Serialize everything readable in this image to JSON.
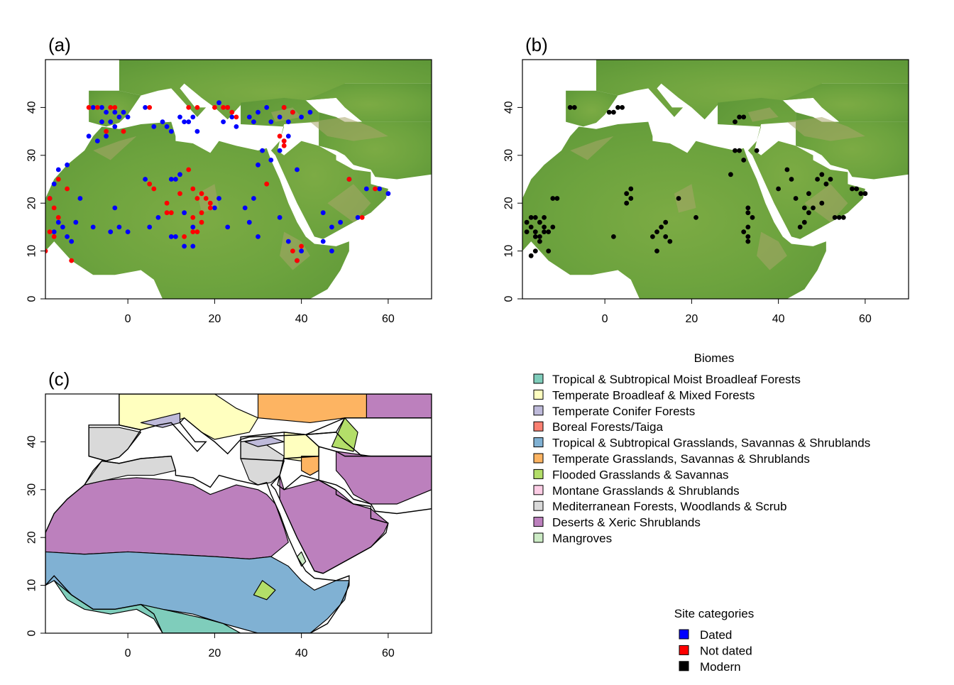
{
  "panels": {
    "a": {
      "label": "(a)"
    },
    "b": {
      "label": "(b)"
    },
    "c": {
      "label": "(c)"
    }
  },
  "axes": {
    "x_ticks": [
      "0",
      "20",
      "40",
      "60"
    ],
    "y_ticks": [
      "0",
      "10",
      "20",
      "30",
      "40"
    ],
    "xlim": [
      -19,
      70
    ],
    "ylim": [
      0,
      50
    ]
  },
  "biome_legend": {
    "title": "Biomes",
    "items": [
      {
        "label": "Tropical & Subtropical Moist Broadleaf Forests",
        "color": "#7fcdbb"
      },
      {
        "label": "Temperate Broadleaf & Mixed Forests",
        "color": "#ffffbf"
      },
      {
        "label": "Temperate Conifer Forests",
        "color": "#bebada"
      },
      {
        "label": "Boreal Forests/Taiga",
        "color": "#fb8072"
      },
      {
        "label": "Tropical & Subtropical Grasslands, Savannas & Shrublands",
        "color": "#80b1d3"
      },
      {
        "label": "Temperate Grasslands, Savannas & Shrublands",
        "color": "#fdb462"
      },
      {
        "label": "Flooded Grasslands & Savannas",
        "color": "#b3de69"
      },
      {
        "label": "Montane Grasslands & Shrublands",
        "color": "#fccde5"
      },
      {
        "label": "Mediterranean Forests, Woodlands & Scrub",
        "color": "#d9d9d9"
      },
      {
        "label": "Deserts & Xeric Shrublands",
        "color": "#bc80bd"
      },
      {
        "label": "Mangroves",
        "color": "#ccebc5"
      }
    ]
  },
  "site_legend": {
    "title": "Site categories",
    "items": [
      {
        "label": "Dated",
        "color": "#0000ff"
      },
      {
        "label": "Not dated",
        "color": "#ff0000"
      },
      {
        "label": "Modern",
        "color": "#000000"
      }
    ]
  },
  "sites": {
    "dated": [
      [
        -8,
        40
      ],
      [
        -6,
        40
      ],
      [
        -5,
        39
      ],
      [
        -3,
        39
      ],
      [
        -2,
        38
      ],
      [
        -1,
        39
      ],
      [
        0,
        38
      ],
      [
        -4,
        37
      ],
      [
        -6,
        37
      ],
      [
        -3,
        36
      ],
      [
        -5,
        34
      ],
      [
        -7,
        33
      ],
      [
        -9,
        34
      ],
      [
        -14,
        28
      ],
      [
        -16,
        27
      ],
      [
        -17,
        24
      ],
      [
        -18,
        21
      ],
      [
        -16,
        16
      ],
      [
        -15,
        15
      ],
      [
        -17,
        14
      ],
      [
        -14,
        13
      ],
      [
        -12,
        16
      ],
      [
        -11,
        21
      ],
      [
        -13,
        12
      ],
      [
        4,
        40
      ],
      [
        8,
        37
      ],
      [
        9,
        36
      ],
      [
        12,
        38
      ],
      [
        13,
        37
      ],
      [
        15,
        38
      ],
      [
        16,
        35
      ],
      [
        14,
        37
      ],
      [
        10,
        35
      ],
      [
        6,
        36
      ],
      [
        21,
        41
      ],
      [
        23,
        40
      ],
      [
        24,
        38
      ],
      [
        22,
        37
      ],
      [
        25,
        36
      ],
      [
        28,
        38
      ],
      [
        29,
        37
      ],
      [
        30,
        39
      ],
      [
        32,
        40
      ],
      [
        33,
        37
      ],
      [
        35,
        38
      ],
      [
        36,
        40
      ],
      [
        37,
        37
      ],
      [
        38,
        39
      ],
      [
        40,
        38
      ],
      [
        42,
        39
      ],
      [
        31,
        31
      ],
      [
        30,
        28
      ],
      [
        33,
        29
      ],
      [
        35,
        31
      ],
      [
        36,
        33
      ],
      [
        37,
        34
      ],
      [
        39,
        27
      ],
      [
        10,
        25
      ],
      [
        11,
        25
      ],
      [
        12,
        26
      ],
      [
        10,
        13
      ],
      [
        11,
        13
      ],
      [
        13,
        11
      ],
      [
        15,
        11
      ],
      [
        13,
        18
      ],
      [
        15,
        15
      ],
      [
        21,
        21
      ],
      [
        20,
        19
      ],
      [
        27,
        19
      ],
      [
        28,
        16
      ],
      [
        29,
        21
      ],
      [
        23,
        15
      ],
      [
        30,
        13
      ],
      [
        35,
        17
      ],
      [
        37,
        12
      ],
      [
        39,
        8
      ],
      [
        40,
        10
      ],
      [
        45,
        18
      ],
      [
        47,
        15
      ],
      [
        49,
        16
      ],
      [
        45,
        12
      ],
      [
        47,
        10
      ],
      [
        51,
        25
      ],
      [
        55,
        23
      ],
      [
        58,
        23
      ],
      [
        60,
        22
      ],
      [
        53,
        17
      ],
      [
        5,
        15
      ],
      [
        7,
        17
      ],
      [
        0,
        14
      ],
      [
        -2,
        15
      ],
      [
        -8,
        15
      ],
      [
        -4,
        14
      ],
      [
        4,
        25
      ],
      [
        -3,
        19
      ]
    ],
    "not_dated": [
      [
        -9,
        40
      ],
      [
        -7,
        40
      ],
      [
        -4,
        40
      ],
      [
        -3,
        40
      ],
      [
        -1,
        35
      ],
      [
        -5,
        35
      ],
      [
        5,
        40
      ],
      [
        14,
        40
      ],
      [
        16,
        40
      ],
      [
        20,
        40
      ],
      [
        22,
        40
      ],
      [
        23,
        40
      ],
      [
        24,
        39
      ],
      [
        25,
        38
      ],
      [
        36,
        40
      ],
      [
        38,
        39
      ],
      [
        36,
        33
      ],
      [
        35,
        34
      ],
      [
        36,
        32
      ],
      [
        -18,
        21
      ],
      [
        -17,
        19
      ],
      [
        -16,
        17
      ],
      [
        -18,
        14
      ],
      [
        -19,
        10
      ],
      [
        -13,
        8
      ],
      [
        -17,
        13
      ],
      [
        -16,
        25
      ],
      [
        -14,
        23
      ],
      [
        5,
        24
      ],
      [
        6,
        23
      ],
      [
        9,
        20
      ],
      [
        10,
        18
      ],
      [
        12,
        22
      ],
      [
        14,
        27
      ],
      [
        15,
        23
      ],
      [
        16,
        21
      ],
      [
        17,
        22
      ],
      [
        18,
        21
      ],
      [
        19,
        20
      ],
      [
        17,
        18
      ],
      [
        15,
        17
      ],
      [
        16,
        14
      ],
      [
        13,
        13
      ],
      [
        15,
        14
      ],
      [
        17,
        16
      ],
      [
        32,
        24
      ],
      [
        38,
        10
      ],
      [
        39,
        8
      ],
      [
        40,
        11
      ],
      [
        51,
        25
      ],
      [
        57,
        23
      ],
      [
        54,
        17
      ],
      [
        9,
        18
      ],
      [
        19,
        19
      ]
    ],
    "modern": [
      [
        -8,
        40
      ],
      [
        -7,
        40
      ],
      [
        1,
        39
      ],
      [
        2,
        39
      ],
      [
        3,
        40
      ],
      [
        4,
        40
      ],
      [
        30,
        37
      ],
      [
        31,
        38
      ],
      [
        32,
        38
      ],
      [
        30,
        31
      ],
      [
        31,
        31
      ],
      [
        35,
        31
      ],
      [
        29,
        26
      ],
      [
        32,
        29
      ],
      [
        -18,
        16
      ],
      [
        -17,
        15
      ],
      [
        -16,
        14
      ],
      [
        -15,
        16
      ],
      [
        -14,
        15
      ],
      [
        -13,
        14
      ],
      [
        -12,
        15
      ],
      [
        -16,
        13
      ],
      [
        -17,
        17
      ],
      [
        -14,
        17
      ],
      [
        -15,
        12
      ],
      [
        -16,
        10
      ],
      [
        -17,
        9
      ],
      [
        -13,
        10
      ],
      [
        -12,
        21
      ],
      [
        -11,
        21
      ],
      [
        -15,
        13
      ],
      [
        -14,
        14
      ],
      [
        -16,
        17
      ],
      [
        -18,
        14
      ],
      [
        2,
        13
      ],
      [
        6,
        23
      ],
      [
        5,
        22
      ],
      [
        6,
        21
      ],
      [
        5,
        20
      ],
      [
        11,
        13
      ],
      [
        12,
        14
      ],
      [
        13,
        15
      ],
      [
        14,
        13
      ],
      [
        15,
        12
      ],
      [
        14,
        16
      ],
      [
        12,
        10
      ],
      [
        17,
        21
      ],
      [
        21,
        17
      ],
      [
        33,
        19
      ],
      [
        33,
        18
      ],
      [
        34,
        17
      ],
      [
        33,
        15
      ],
      [
        32,
        14
      ],
      [
        33,
        13
      ],
      [
        33,
        12
      ],
      [
        40,
        23
      ],
      [
        42,
        27
      ],
      [
        43,
        25
      ],
      [
        46,
        19
      ],
      [
        47,
        18
      ],
      [
        46,
        16
      ],
      [
        45,
        15
      ],
      [
        48,
        19
      ],
      [
        49,
        25
      ],
      [
        50,
        26
      ],
      [
        51,
        24
      ],
      [
        52,
        25
      ],
      [
        53,
        17
      ],
      [
        54,
        17
      ],
      [
        55,
        17
      ],
      [
        57,
        23
      ],
      [
        58,
        23
      ],
      [
        59,
        22
      ],
      [
        60,
        22
      ],
      [
        47,
        22
      ],
      [
        50,
        20
      ],
      [
        44,
        21
      ]
    ]
  }
}
